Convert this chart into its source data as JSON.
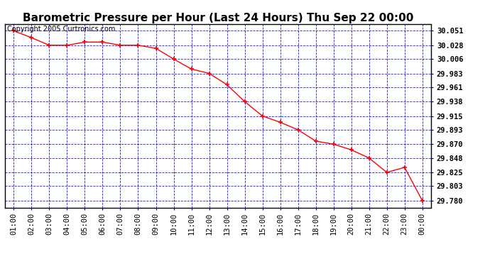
{
  "title": "Barometric Pressure per Hour (Last 24 Hours) Thu Sep 22 00:00",
  "copyright": "Copyright 2005 Curtronics.com",
  "x_labels": [
    "01:00",
    "02:00",
    "03:00",
    "04:00",
    "05:00",
    "06:00",
    "07:00",
    "08:00",
    "09:00",
    "10:00",
    "11:00",
    "12:00",
    "13:00",
    "14:00",
    "15:00",
    "16:00",
    "17:00",
    "18:00",
    "19:00",
    "20:00",
    "21:00",
    "22:00",
    "23:00",
    "00:00"
  ],
  "y_values": [
    30.051,
    30.04,
    30.028,
    30.028,
    30.033,
    30.033,
    30.028,
    30.028,
    30.023,
    30.006,
    29.99,
    29.983,
    29.965,
    29.938,
    29.915,
    29.905,
    29.893,
    29.875,
    29.87,
    29.861,
    29.848,
    29.825,
    29.833,
    29.78
  ],
  "yticks": [
    29.78,
    29.803,
    29.825,
    29.848,
    29.87,
    29.893,
    29.915,
    29.938,
    29.961,
    29.983,
    30.006,
    30.028,
    30.051
  ],
  "ylim_min": 29.769,
  "ylim_max": 30.062,
  "line_color": "red",
  "marker_color": "red",
  "bg_color": "#ffffff",
  "outer_bg": "#ffffff",
  "grid_color": "blue",
  "title_fontsize": 11,
  "tick_fontsize": 7.5,
  "copyright_fontsize": 7
}
